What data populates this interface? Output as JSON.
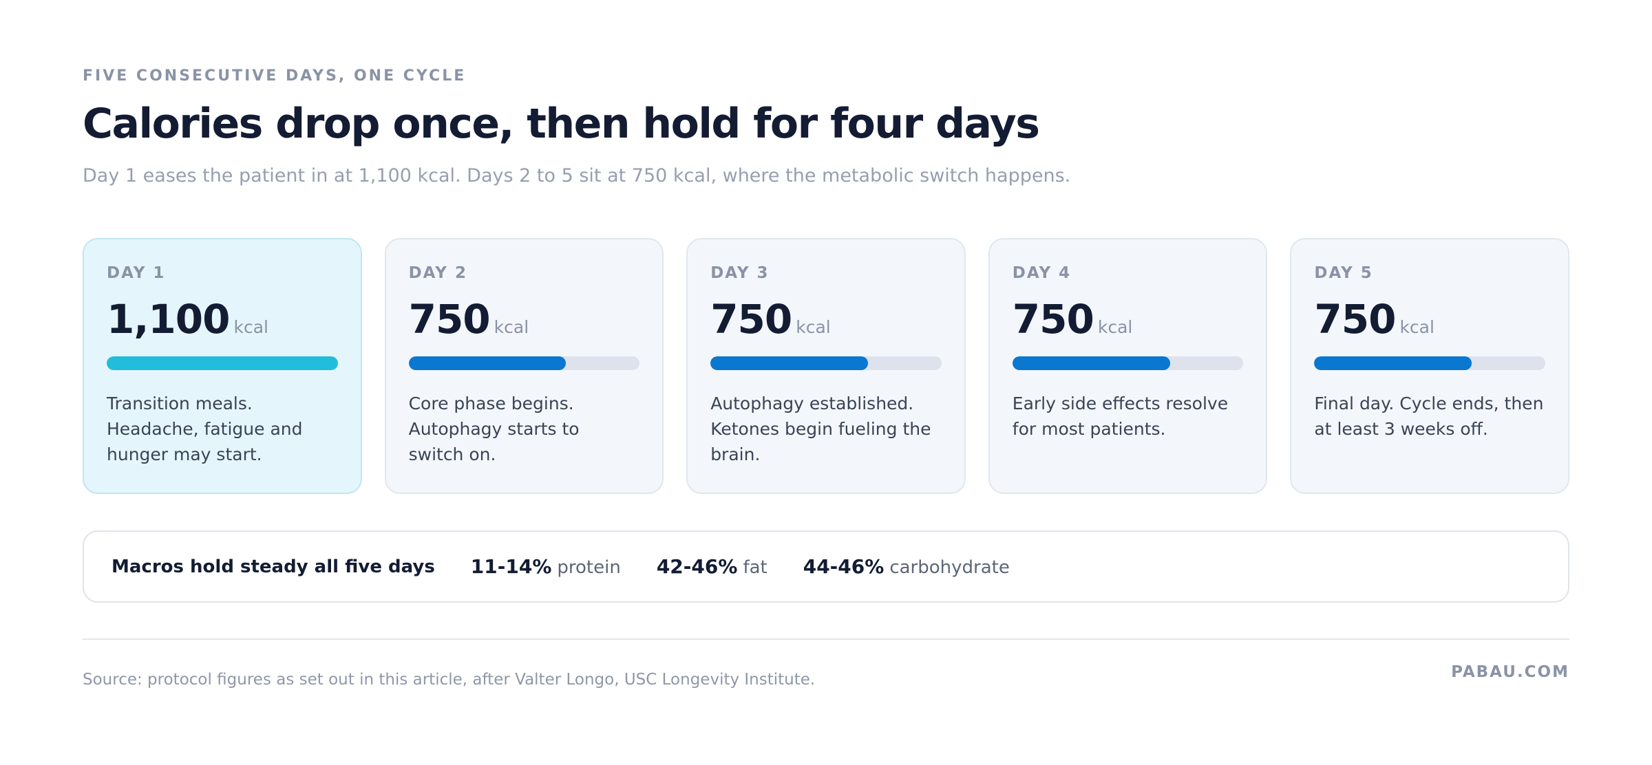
{
  "header": {
    "eyebrow": "FIVE CONSECUTIVE DAYS, ONE CYCLE",
    "title": "Calories drop once, then hold for four days",
    "subtitle": "Day 1 eases the patient in at 1,100 kcal. Days 2 to 5 sit at 750 kcal, where the metabolic switch happens."
  },
  "days": [
    {
      "label": "DAY 1",
      "value": 1100,
      "value_label": "1,100",
      "unit": "kcal",
      "description": "Transition meals. Headache, fatigue and hunger may start.",
      "color": "#22bcdc"
    },
    {
      "label": "DAY 2",
      "value": 750,
      "unit": "kcal",
      "description": "Core phase begins. Autophagy starts to switch on.",
      "color": "#0a77d0"
    },
    {
      "label": "DAY 3",
      "value": 750,
      "unit": "kcal",
      "description": "Autophagy established. Ketones begin fueling the brain.",
      "color": "#0a77d0"
    },
    {
      "label": "DAY 4",
      "value": 750,
      "unit": "kcal",
      "description": "Early side effects resolve for most patients.",
      "color": "#0a77d0"
    },
    {
      "label": "DAY 5",
      "value": 750,
      "unit": "kcal",
      "description": "Final day. Cycle ends, then at least 3 weeks off.",
      "color": "#0a77d0"
    }
  ],
  "macros": {
    "label": "Macros hold steady all five days",
    "items": [
      {
        "range": "11-14%",
        "name": "protein"
      },
      {
        "range": "42-46%",
        "name": "fat"
      },
      {
        "range": "44-46%",
        "name": "carbohydrate"
      }
    ]
  },
  "footer": {
    "source": "Source: protocol figures as set out in this article, after Valter Longo, USC Longevity Institute.",
    "brand": "PABAU.COM"
  }
}
